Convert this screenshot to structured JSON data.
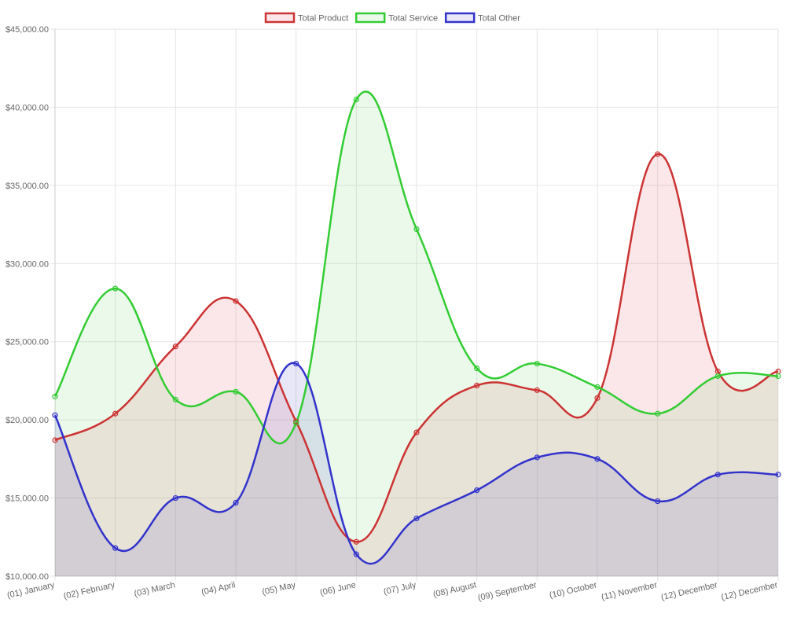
{
  "chart_data": {
    "type": "area",
    "title": "",
    "xlabel": "",
    "ylabel": "",
    "categories": [
      "(01) January",
      "(02) February",
      "(03) March",
      "(04) April",
      "(05) May",
      "(06) June",
      "(07) July",
      "(08) August",
      "(09) September",
      "(10) October",
      "(11) November",
      "(12) December",
      "(12) December"
    ],
    "ylim": [
      10000,
      45000
    ],
    "yticks": [
      10000,
      15000,
      20000,
      25000,
      30000,
      35000,
      40000,
      45000
    ],
    "ytick_labels": [
      "$10,000.00",
      "$15,000.00",
      "$20,000.00",
      "$25,000.00",
      "$30,000.00",
      "$35,000.00",
      "$40,000.00",
      "$45,000.00"
    ],
    "grid": true,
    "legend_position": "top",
    "series": [
      {
        "name": "Total Product",
        "color": "#cc3333",
        "fill": "rgba(220, 60, 70, 0.12)",
        "values": [
          18700,
          20400,
          24700,
          27600,
          19900,
          12200,
          19200,
          22200,
          21900,
          21400,
          37000,
          23100,
          23100
        ]
      },
      {
        "name": "Total Service",
        "color": "#33cc33",
        "fill": "rgba(60, 200, 60, 0.10)",
        "values": [
          21500,
          28400,
          21300,
          21800,
          19800,
          40500,
          32200,
          23300,
          23600,
          22100,
          20400,
          22800,
          22800
        ]
      },
      {
        "name": "Total Other",
        "color": "#3333cc",
        "fill": "rgba(60, 60, 200, 0.12)",
        "values": [
          20300,
          11800,
          15000,
          14700,
          23600,
          11400,
          13700,
          15500,
          17600,
          17500,
          14800,
          16500,
          16500
        ]
      }
    ]
  }
}
